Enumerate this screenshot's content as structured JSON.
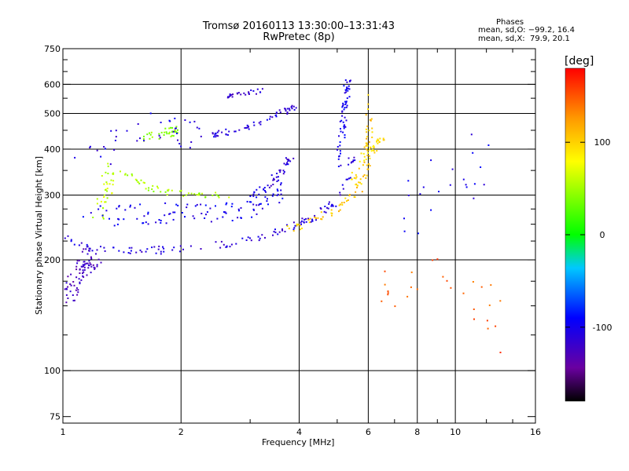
{
  "header": {
    "title_line1": "Tromsø 20160113 13:30:00–13:31:43",
    "title_line2": "RwPretec (8p)",
    "stats_heading": "Phases",
    "stats_O": "mean, sd,O: −99.2, 16.4",
    "stats_X": "mean, sd,X:  79.9, 20.1"
  },
  "colorbar": {
    "unit": "[deg]",
    "ticks": [
      {
        "value": 100,
        "label": "100"
      },
      {
        "value": 0,
        "label": "0"
      },
      {
        "value": -100,
        "label": "-100"
      }
    ],
    "range": [
      -180,
      180
    ]
  },
  "chart_data": {
    "type": "scatter",
    "xlabel": "Frequency [MHz]",
    "ylabel": "Stationary phase Virtual Height [km]",
    "xscale": "log",
    "yscale": "log",
    "xlim": [
      1,
      16
    ],
    "ylim": [
      72,
      750
    ],
    "xticks": [
      {
        "value": 1,
        "label": "1"
      },
      {
        "value": 2,
        "label": "2"
      },
      {
        "value": 4,
        "label": "4"
      },
      {
        "value": 6,
        "label": "6"
      },
      {
        "value": 8,
        "label": "8"
      },
      {
        "value": 10,
        "label": "10"
      },
      {
        "value": 16,
        "label": "16"
      }
    ],
    "xgrid": [
      1,
      2,
      4,
      6,
      8,
      10,
      16
    ],
    "xminor": [
      3,
      5,
      7,
      9,
      12,
      14
    ],
    "yticks": [
      {
        "value": 75,
        "label": "75"
      },
      {
        "value": 100,
        "label": "100"
      },
      {
        "value": 200,
        "label": "200"
      },
      {
        "value": 300,
        "label": "300"
      },
      {
        "value": 400,
        "label": "400"
      },
      {
        "value": 500,
        "label": "500"
      },
      {
        "value": 600,
        "label": "600"
      },
      {
        "value": 750,
        "label": "750"
      }
    ],
    "ygrid": [
      100,
      200,
      300,
      400,
      500,
      600
    ],
    "yminor": [
      125,
      150,
      175,
      225,
      250,
      275,
      350,
      450,
      550,
      650,
      700
    ],
    "grid": true,
    "colorscale": "rainbow phase [deg], -180 to 180",
    "traces": [
      {
        "name": "",
        "phase": -110,
        "count": 130,
        "spread": 5,
        "points": [
          [
            1.0,
            230
          ],
          [
            1.1,
            220
          ],
          [
            1.3,
            215
          ],
          [
            1.6,
            213
          ],
          [
            2.0,
            215
          ],
          [
            2.5,
            220
          ],
          [
            3.0,
            228
          ],
          [
            3.5,
            240
          ],
          [
            4.0,
            252
          ],
          [
            4.5,
            268
          ],
          [
            5.0,
            290
          ],
          [
            5.3,
            330
          ],
          [
            5.5,
            400
          ]
        ]
      },
      {
        "name": "",
        "phase": 105,
        "count": 80,
        "spread": 5,
        "points": [
          [
            3.8,
            243
          ],
          [
            4.3,
            257
          ],
          [
            4.8,
            270
          ],
          [
            5.3,
            290
          ],
          [
            5.7,
            320
          ],
          [
            5.9,
            360
          ],
          [
            6.0,
            420
          ],
          [
            6.0,
            480
          ],
          [
            5.9,
            560
          ]
        ]
      },
      {
        "name": "",
        "phase": -100,
        "count": 60,
        "spread": 4,
        "points": [
          [
            5.0,
            360
          ],
          [
            5.1,
            430
          ],
          [
            5.2,
            500
          ],
          [
            5.25,
            560
          ],
          [
            5.3,
            630
          ]
        ]
      },
      {
        "name": "",
        "phase": 95,
        "count": 45,
        "spread": 6,
        "points": [
          [
            5.5,
            330
          ],
          [
            5.8,
            380
          ],
          [
            6.2,
            410
          ],
          [
            6.5,
            425
          ]
        ]
      },
      {
        "name": "",
        "phase": 50,
        "count": 50,
        "spread": 4,
        "points": [
          [
            1.4,
            355
          ],
          [
            1.6,
            318
          ],
          [
            1.9,
            305
          ],
          [
            2.2,
            302
          ],
          [
            2.6,
            300
          ]
        ]
      },
      {
        "name": "",
        "phase": -110,
        "count": 60,
        "spread": 4,
        "points": [
          [
            2.4,
            440
          ],
          [
            2.8,
            455
          ],
          [
            3.2,
            475
          ],
          [
            3.6,
            505
          ],
          [
            3.9,
            520
          ]
        ]
      },
      {
        "name": "",
        "phase": -115,
        "count": 25,
        "spread": 3,
        "points": [
          [
            2.6,
            560
          ],
          [
            2.9,
            572
          ],
          [
            3.2,
            578
          ]
        ]
      },
      {
        "name": "",
        "phase": -110,
        "count": 40,
        "spread": 5,
        "points": [
          [
            3.0,
            300
          ],
          [
            3.3,
            320
          ],
          [
            3.6,
            350
          ],
          [
            3.9,
            390
          ]
        ]
      },
      {
        "name": "",
        "phase": -125,
        "count": 90,
        "spread": 12,
        "points": [
          [
            1.0,
            160
          ],
          [
            1.05,
            170
          ],
          [
            1.1,
            185
          ],
          [
            1.15,
            200
          ],
          [
            1.2,
            210
          ]
        ]
      },
      {
        "name": "",
        "phase": 60,
        "count": 35,
        "spread": 8,
        "points": [
          [
            1.2,
            260
          ],
          [
            1.28,
            300
          ],
          [
            1.3,
            360
          ]
        ]
      },
      {
        "name": "",
        "phase": -100,
        "count": 110,
        "spread": 14,
        "points": [
          [
            1.1,
            260
          ],
          [
            1.5,
            270
          ],
          [
            2.0,
            265
          ],
          [
            2.6,
            270
          ],
          [
            3.1,
            290
          ],
          [
            3.6,
            310
          ]
        ]
      },
      {
        "name": "",
        "phase": 40,
        "count": 35,
        "spread": 6,
        "points": [
          [
            1.6,
            430
          ],
          [
            1.8,
            445
          ],
          [
            1.95,
            450
          ]
        ]
      },
      {
        "name": "",
        "phase": -105,
        "count": 40,
        "spread": 18,
        "points": [
          [
            1.1,
            380
          ],
          [
            1.4,
            420
          ],
          [
            1.8,
            470
          ],
          [
            2.2,
            430
          ]
        ]
      },
      {
        "name": "",
        "phase": 150,
        "count": 28,
        "spread": 25,
        "points": [
          [
            6.6,
            170
          ],
          [
            7.2,
            160
          ],
          [
            8.0,
            180
          ],
          [
            10.5,
            200
          ],
          [
            12.5,
            110
          ]
        ]
      },
      {
        "name": "",
        "phase": -100,
        "count": 22,
        "spread": 25,
        "points": [
          [
            7.5,
            330
          ],
          [
            8.0,
            250
          ],
          [
            9.9,
            380
          ],
          [
            11.0,
            300
          ],
          [
            12.5,
            450
          ]
        ]
      }
    ]
  }
}
